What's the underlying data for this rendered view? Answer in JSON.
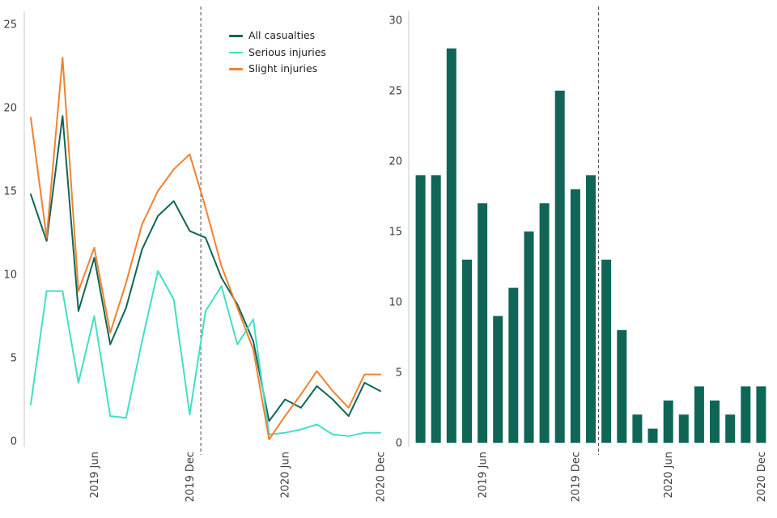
{
  "colors": {
    "all_casualties": "#0f6657",
    "serious_injuries": "#40e0c4",
    "slight_injuries": "#ef8230",
    "bar_fill": "#0f6657",
    "axis_line": "#c9c9c9",
    "tick_text": "#3d3d3d",
    "dashed_line": "#4a4a4a",
    "background": "#ffffff"
  },
  "chart_data": [
    {
      "type": "line",
      "title": "",
      "n_points": 23,
      "grid": false,
      "ylim": [
        0,
        25
      ],
      "yticks": [
        0,
        5,
        10,
        15,
        20,
        25
      ],
      "xticks": [
        {
          "index": 4,
          "label": "2019 Jun"
        },
        {
          "index": 10,
          "label": "2019 Dec"
        },
        {
          "index": 16,
          "label": "2020 Jun"
        },
        {
          "index": 22,
          "label": "2020 Dec"
        }
      ],
      "xtick_rotation": 90,
      "vline_index": 10.7,
      "legend_position": "top-right-inside",
      "series": [
        {
          "name": "All casualties",
          "color_key": "all_casualties",
          "values": [
            14.8,
            12,
            19.5,
            7.8,
            11,
            5.8,
            8,
            11.5,
            13.5,
            14.4,
            12.6,
            12.2,
            9.8,
            8.2,
            6,
            1.2,
            2.5,
            2,
            3.3,
            2.5,
            1.5,
            3.5,
            3
          ]
        },
        {
          "name": "Serious injuries",
          "color_key": "serious_injuries",
          "values": [
            2.2,
            9,
            9,
            3.5,
            7.5,
            1.5,
            1.4,
            6,
            10.2,
            8.5,
            1.6,
            7.8,
            9.3,
            5.8,
            7.3,
            0.4,
            0.5,
            0.7,
            1,
            0.4,
            0.3,
            0.5,
            0.5
          ]
        },
        {
          "name": "Slight injuries",
          "color_key": "slight_injuries",
          "values": [
            19.4,
            12.2,
            23,
            9,
            11.6,
            6.5,
            9.5,
            13,
            15,
            16.3,
            17.2,
            14,
            10.5,
            8,
            5.5,
            0.1,
            1.5,
            2.8,
            4.2,
            3,
            2,
            4,
            4
          ]
        }
      ]
    },
    {
      "type": "bar",
      "title": "",
      "n_points": 23,
      "grid": false,
      "ylim": [
        0,
        30
      ],
      "yticks": [
        0,
        5,
        10,
        15,
        20,
        25,
        30
      ],
      "xticks": [
        {
          "index": 4,
          "label": "2019 Jun"
        },
        {
          "index": 10,
          "label": "2019 Dec"
        },
        {
          "index": 16,
          "label": "2020 Jun"
        },
        {
          "index": 22,
          "label": "2020 Dec"
        }
      ],
      "xtick_rotation": 90,
      "vline_after_bar": 12,
      "bar_color_key": "bar_fill",
      "values": [
        19,
        19,
        28,
        13,
        17,
        9,
        11,
        15,
        17,
        25,
        18,
        19,
        13,
        8,
        2,
        1,
        3,
        2,
        4,
        3,
        2,
        4,
        4
      ]
    }
  ]
}
